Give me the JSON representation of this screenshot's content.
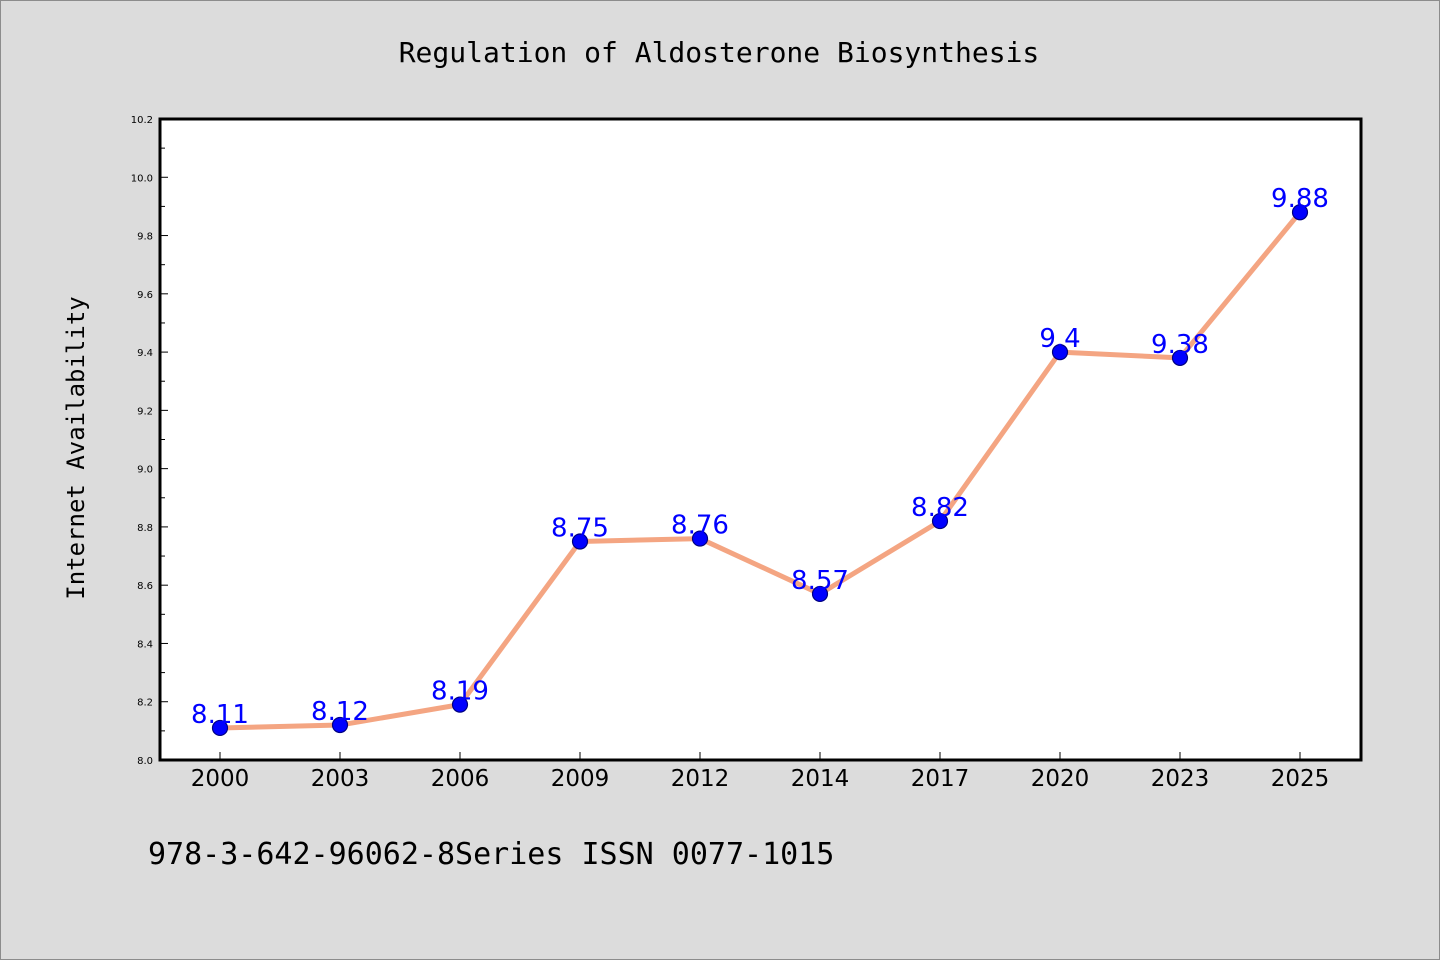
{
  "chart_data": {
    "type": "line",
    "title": "Regulation of Aldosterone Biosynthesis",
    "xlabel": "",
    "ylabel": "Internet Availability",
    "categories": [
      "2000",
      "2003",
      "2006",
      "2009",
      "2012",
      "2014",
      "2017",
      "2020",
      "2023",
      "2025"
    ],
    "series": [
      {
        "values": [
          8.11,
          8.12,
          8.19,
          8.75,
          8.76,
          8.57,
          8.82,
          9.4,
          9.38,
          9.88
        ],
        "data_labels": [
          "8.11",
          "8.12",
          "8.19",
          "8.75",
          "8.76",
          "8.57",
          "8.82",
          "9.4",
          "9.38",
          "9.88"
        ]
      }
    ],
    "ylim": [
      8.0,
      10.2
    ],
    "yticks": [
      "8.0",
      "8.2",
      "8.4",
      "8.6",
      "8.8",
      "9.0",
      "9.2",
      "9.4",
      "9.6",
      "9.8",
      "10.0",
      "10.2"
    ],
    "grid": false,
    "legend": "none",
    "colors": {
      "line": "#f4a582",
      "marker": "#0000ff",
      "marker_edge": "#000080",
      "data_label": "#0000ff",
      "plot_background": "#ffffff",
      "figure_background": "#dcdcdc"
    }
  },
  "footer": {
    "text": "978-3-642-96062-8Series ISSN 0077-1015"
  }
}
